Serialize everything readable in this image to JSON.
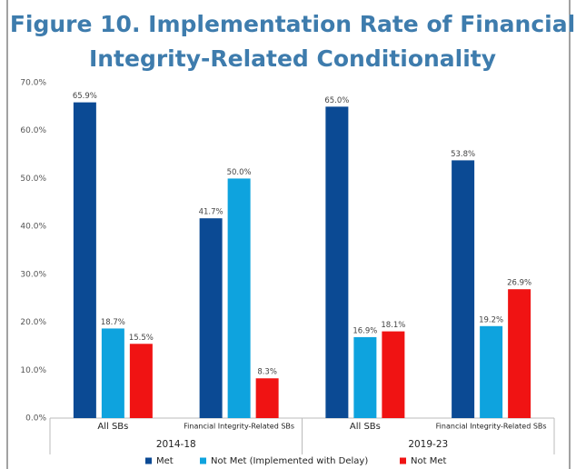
{
  "chart_data": {
    "type": "bar",
    "title": [
      "Figure 10. Implementation Rate of Financial",
      "Integrity-Related Conditionality"
    ],
    "categories": [
      "All SBs",
      "Financial Integrity-Related SBs",
      "All SBs",
      "Financial Integrity-Related SBs"
    ],
    "group_labels": [
      "2014-18",
      "2019-23"
    ],
    "series": [
      {
        "name": "Met",
        "color": "#0b4a94",
        "values": [
          65.9,
          41.7,
          65.0,
          53.8
        ],
        "value_labels": [
          "65.9%",
          "41.7%",
          "65.0%",
          "53.8%"
        ]
      },
      {
        "name": "Not Met (Implemented with Delay)",
        "color": "#0ea3de",
        "values": [
          18.7,
          50.0,
          16.9,
          19.2
        ],
        "value_labels": [
          "18.7%",
          "50.0%",
          "16.9%",
          "19.2%"
        ]
      },
      {
        "name": "Not Met",
        "color": "#f01313",
        "values": [
          15.5,
          8.3,
          18.1,
          26.9
        ],
        "value_labels": [
          "15.5%",
          "8.3%",
          "18.1%",
          "26.9%"
        ]
      }
    ],
    "ylim": [
      0,
      70
    ],
    "yticks": [
      {
        "value": 0,
        "label": "0.0%"
      },
      {
        "value": 10,
        "label": "10.0%"
      },
      {
        "value": 20,
        "label": "20.0%"
      },
      {
        "value": 30,
        "label": "30.0%"
      },
      {
        "value": 40,
        "label": "40.0%"
      },
      {
        "value": 50,
        "label": "50.0%"
      },
      {
        "value": 60,
        "label": "60.0%"
      },
      {
        "value": 70,
        "label": "70.0%"
      }
    ],
    "grid": false,
    "legend": "bottom"
  }
}
